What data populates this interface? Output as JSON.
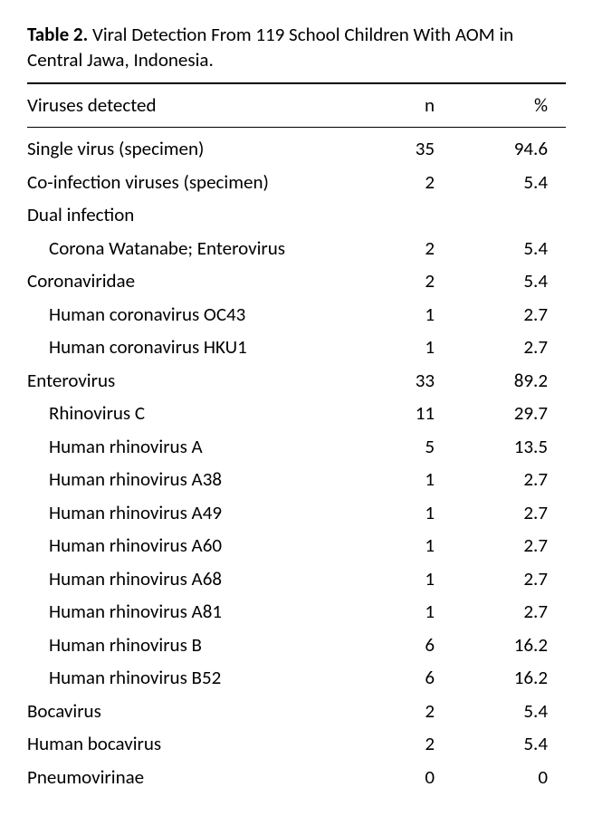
{
  "caption": {
    "label": "Table 2.",
    "title": "Viral Detection From 119 School Children With AOM in Central Jawa, Indonesia."
  },
  "columns": {
    "c1": "Viruses detected",
    "c2": "n",
    "c3": "%"
  },
  "rows": [
    {
      "label": "Single virus (specimen)",
      "indent": 0,
      "n": "35",
      "pct": "94.6"
    },
    {
      "label": "Co-infection viruses (specimen)",
      "indent": 0,
      "n": "2",
      "pct": "5.4"
    },
    {
      "label": "Dual infection",
      "indent": 0,
      "n": "",
      "pct": ""
    },
    {
      "label": "Corona Watanabe; Enterovirus",
      "indent": 1,
      "n": "2",
      "pct": "5.4"
    },
    {
      "label": "Coronaviridae",
      "indent": 0,
      "n": "2",
      "pct": "5.4"
    },
    {
      "label": "Human coronavirus OC43",
      "indent": 1,
      "n": "1",
      "pct": "2.7"
    },
    {
      "label": "Human coronavirus HKU1",
      "indent": 1,
      "n": "1",
      "pct": "2.7"
    },
    {
      "label": "Enterovirus",
      "indent": 0,
      "n": "33",
      "pct": "89.2"
    },
    {
      "label": "Rhinovirus C",
      "indent": 1,
      "n": "11",
      "pct": "29.7"
    },
    {
      "label": "Human rhinovirus A",
      "indent": 1,
      "n": "5",
      "pct": "13.5"
    },
    {
      "label": "Human rhinovirus A38",
      "indent": 1,
      "n": "1",
      "pct": "2.7"
    },
    {
      "label": "Human rhinovirus A49",
      "indent": 1,
      "n": "1",
      "pct": "2.7"
    },
    {
      "label": "Human rhinovirus A60",
      "indent": 1,
      "n": "1",
      "pct": "2.7"
    },
    {
      "label": "Human rhinovirus A68",
      "indent": 1,
      "n": "1",
      "pct": "2.7"
    },
    {
      "label": "Human rhinovirus A81",
      "indent": 1,
      "n": "1",
      "pct": "2.7"
    },
    {
      "label": "Human rhinovirus B",
      "indent": 1,
      "n": "6",
      "pct": "16.2"
    },
    {
      "label": "Human rhinovirus B52",
      "indent": 1,
      "n": "6",
      "pct": "16.2"
    },
    {
      "label": "Bocavirus",
      "indent": 0,
      "n": "2",
      "pct": "5.4"
    },
    {
      "label": "Human bocavirus",
      "indent": 0,
      "n": "2",
      "pct": "5.4"
    },
    {
      "label": "Pneumovirinae",
      "indent": 0,
      "n": "0",
      "pct": "0"
    }
  ]
}
